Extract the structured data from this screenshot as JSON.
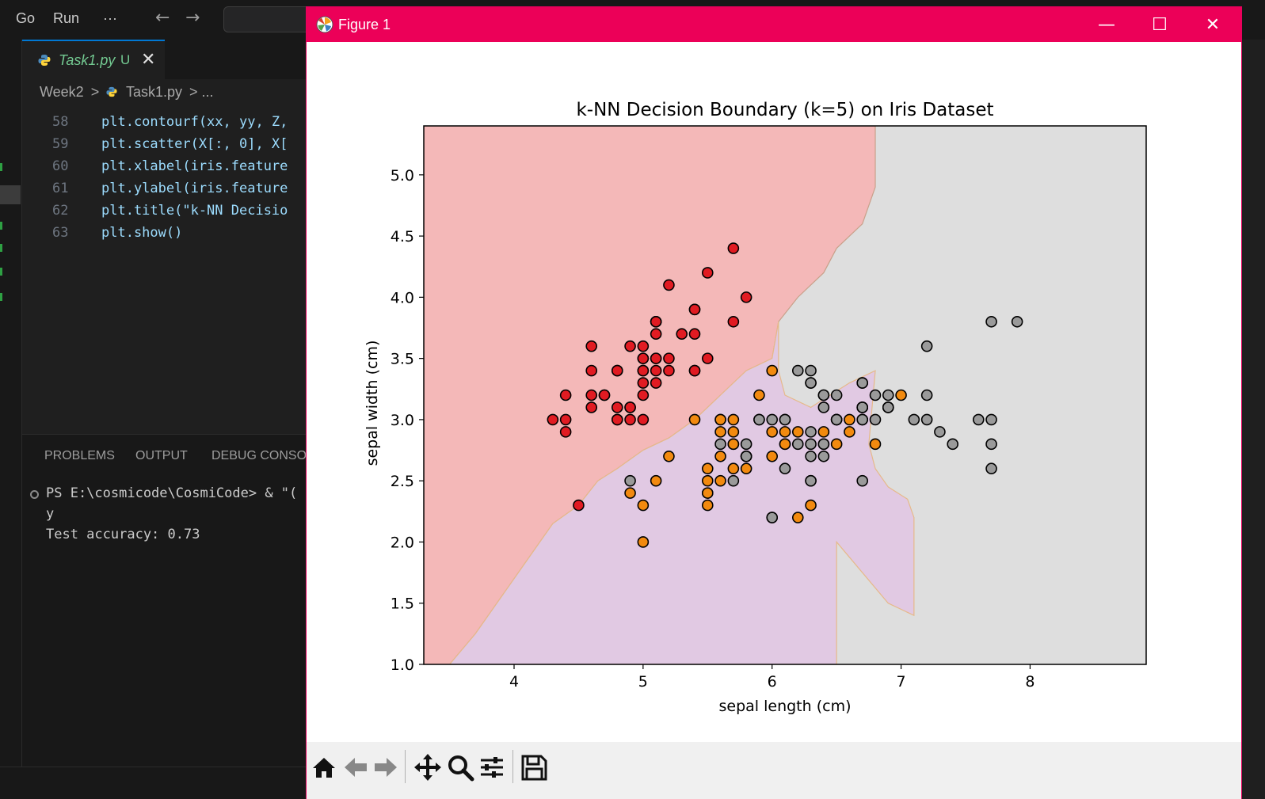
{
  "vscode": {
    "menu": [
      "Go",
      "Run",
      "···"
    ],
    "tab": {
      "label": "Task1.py",
      "status": "U"
    },
    "breadcrumb": [
      "Week2",
      ">",
      "Task1.py",
      "> ..."
    ],
    "code_lines": [
      {
        "num": "58",
        "text": "plt.contourf(xx, yy, Z,"
      },
      {
        "num": "59",
        "text": "plt.scatter(X[:, 0], X["
      },
      {
        "num": "60",
        "text": "plt.xlabel(iris.feature"
      },
      {
        "num": "61",
        "text": "plt.ylabel(iris.feature"
      },
      {
        "num": "62",
        "text": "plt.title(\"k-NN Decisio"
      },
      {
        "num": "63",
        "text": "plt.show()"
      }
    ],
    "panel_tabs": [
      "PROBLEMS",
      "OUTPUT",
      "DEBUG CONSOL"
    ],
    "terminal": [
      "PS E:\\cosmicode\\CosmiCode> & \"(",
      "y",
      "Test accuracy: 0.73"
    ]
  },
  "figure": {
    "window_title": "Figure 1",
    "toolbar_icons": [
      "home-icon",
      "back-arrow-icon",
      "forward-arrow-icon",
      "pan-icon",
      "zoom-icon",
      "configure-subplots-icon",
      "save-icon"
    ]
  },
  "chart_data": {
    "type": "scatter",
    "title": "k-NN Decision Boundary (k=5) on Iris Dataset",
    "xlabel": "sepal length (cm)",
    "ylabel": "sepal width (cm)",
    "xlim": [
      3.3,
      8.9
    ],
    "ylim": [
      1.0,
      5.4
    ],
    "xticks": [
      4,
      5,
      6,
      7,
      8
    ],
    "yticks": [
      1.0,
      1.5,
      2.0,
      2.5,
      3.0,
      3.5,
      4.0,
      4.5,
      5.0
    ],
    "grid": false,
    "colors": {
      "region_0": "#f4b8b8",
      "region_1": "#e1c9e3",
      "region_2": "#dedede",
      "class_0": "#e11b22",
      "class_1": "#f28a0f",
      "class_2": "#9a9a9a"
    },
    "regions": [
      {
        "class": 0,
        "polygon": [
          [
            3.3,
            1.0
          ],
          [
            3.5,
            1.0
          ],
          [
            3.7,
            1.25
          ],
          [
            3.9,
            1.55
          ],
          [
            4.1,
            1.85
          ],
          [
            4.3,
            2.15
          ],
          [
            4.5,
            2.3
          ],
          [
            4.65,
            2.5
          ],
          [
            4.8,
            2.6
          ],
          [
            5.0,
            2.75
          ],
          [
            5.2,
            2.85
          ],
          [
            5.4,
            3.0
          ],
          [
            5.6,
            3.2
          ],
          [
            5.8,
            3.4
          ],
          [
            6.0,
            3.5
          ],
          [
            6.05,
            3.8
          ],
          [
            6.2,
            4.0
          ],
          [
            6.4,
            4.2
          ],
          [
            6.5,
            4.4
          ],
          [
            6.7,
            4.6
          ],
          [
            6.8,
            4.9
          ],
          [
            6.8,
            5.4
          ],
          [
            3.3,
            5.4
          ]
        ]
      },
      {
        "class": 1,
        "polygon": [
          [
            3.5,
            1.0
          ],
          [
            6.5,
            1.0
          ],
          [
            6.5,
            2.0
          ],
          [
            6.9,
            1.5
          ],
          [
            7.1,
            1.4
          ],
          [
            7.1,
            2.2
          ],
          [
            7.05,
            2.35
          ],
          [
            6.9,
            2.45
          ],
          [
            6.8,
            2.6
          ],
          [
            6.75,
            2.8
          ],
          [
            6.8,
            3.4
          ],
          [
            6.6,
            3.3
          ],
          [
            6.3,
            3.1
          ],
          [
            6.1,
            3.2
          ],
          [
            6.05,
            3.4
          ],
          [
            6.05,
            3.8
          ],
          [
            6.0,
            3.5
          ],
          [
            5.8,
            3.4
          ],
          [
            5.6,
            3.2
          ],
          [
            5.4,
            3.0
          ],
          [
            5.2,
            2.85
          ],
          [
            5.0,
            2.75
          ],
          [
            4.8,
            2.6
          ],
          [
            4.65,
            2.5
          ],
          [
            4.5,
            2.3
          ],
          [
            4.3,
            2.15
          ],
          [
            4.1,
            1.85
          ],
          [
            3.9,
            1.55
          ],
          [
            3.7,
            1.25
          ]
        ]
      }
    ],
    "series": [
      {
        "class": 0,
        "x": [
          5.1,
          4.9,
          4.7,
          4.6,
          5.0,
          5.4,
          4.6,
          5.0,
          4.4,
          4.9,
          5.4,
          4.8,
          4.8,
          4.3,
          5.8,
          5.7,
          5.4,
          5.1,
          5.7,
          5.1,
          5.4,
          5.1,
          4.6,
          5.1,
          4.8,
          5.0,
          5.0,
          5.2,
          5.2,
          4.7,
          4.8,
          5.4,
          5.2,
          5.5,
          4.9,
          5.0,
          5.5,
          4.9,
          4.4,
          5.1,
          5.0,
          4.5,
          4.4,
          5.0,
          5.1,
          4.8,
          5.1,
          4.6,
          5.3,
          5.0
        ],
        "y": [
          3.5,
          3.0,
          3.2,
          3.1,
          3.6,
          3.9,
          3.4,
          3.4,
          2.9,
          3.1,
          3.7,
          3.4,
          3.0,
          3.0,
          4.0,
          4.4,
          3.9,
          3.5,
          3.8,
          3.8,
          3.4,
          3.7,
          3.6,
          3.3,
          3.4,
          3.0,
          3.4,
          3.5,
          3.4,
          3.2,
          3.1,
          3.4,
          4.1,
          4.2,
          3.1,
          3.2,
          3.5,
          3.6,
          3.0,
          3.4,
          3.5,
          2.3,
          3.2,
          3.5,
          3.8,
          3.0,
          3.8,
          3.2,
          3.7,
          3.3
        ]
      },
      {
        "class": 1,
        "x": [
          7.0,
          6.4,
          6.9,
          5.5,
          6.5,
          5.7,
          6.3,
          4.9,
          6.6,
          5.2,
          5.0,
          5.9,
          6.0,
          6.1,
          5.6,
          6.7,
          5.6,
          5.8,
          6.2,
          5.6,
          5.9,
          6.1,
          6.3,
          6.1,
          6.4,
          6.6,
          6.8,
          6.7,
          6.0,
          5.7,
          5.5,
          5.5,
          5.8,
          6.0,
          5.4,
          6.0,
          6.7,
          6.3,
          5.6,
          5.5,
          5.5,
          6.1,
          5.8,
          5.0,
          5.6,
          5.7,
          5.7,
          6.2,
          5.1,
          5.7
        ],
        "y": [
          3.2,
          3.2,
          3.1,
          2.3,
          2.8,
          2.8,
          3.3,
          2.4,
          2.9,
          2.7,
          2.0,
          3.0,
          2.2,
          2.9,
          2.9,
          3.1,
          3.0,
          2.7,
          2.2,
          2.5,
          3.2,
          2.8,
          2.5,
          2.8,
          2.9,
          3.0,
          2.8,
          3.0,
          2.9,
          2.6,
          2.4,
          2.4,
          2.7,
          2.7,
          3.0,
          3.4,
          3.1,
          2.3,
          3.0,
          2.5,
          2.6,
          3.0,
          2.6,
          2.3,
          2.7,
          3.0,
          2.9,
          2.9,
          2.5,
          2.8
        ]
      },
      {
        "class": 2,
        "x": [
          6.3,
          5.8,
          7.1,
          6.3,
          6.5,
          7.6,
          4.9,
          7.3,
          6.7,
          7.2,
          6.5,
          6.4,
          6.8,
          5.7,
          5.8,
          6.4,
          6.5,
          7.7,
          7.7,
          6.0,
          6.9,
          5.6,
          7.7,
          6.3,
          6.7,
          7.2,
          6.2,
          6.1,
          6.4,
          7.2,
          7.4,
          7.9,
          6.4,
          6.3,
          6.1,
          7.7,
          6.3,
          6.4,
          6.0,
          6.9,
          6.7,
          6.9,
          5.8,
          6.8,
          6.7,
          6.7,
          6.3,
          6.5,
          6.2,
          5.9
        ],
        "y": [
          3.3,
          2.7,
          3.0,
          2.9,
          3.0,
          3.0,
          2.5,
          2.9,
          2.5,
          3.6,
          3.2,
          2.7,
          3.0,
          2.5,
          2.8,
          3.2,
          3.0,
          3.8,
          2.6,
          2.2,
          3.2,
          2.8,
          2.8,
          2.7,
          3.3,
          3.2,
          2.8,
          3.0,
          2.8,
          3.0,
          2.8,
          3.8,
          2.8,
          2.8,
          2.6,
          3.0,
          3.4,
          3.1,
          3.0,
          3.1,
          3.1,
          3.1,
          2.7,
          3.2,
          3.3,
          3.0,
          2.5,
          3.0,
          3.4,
          3.0
        ]
      }
    ]
  }
}
